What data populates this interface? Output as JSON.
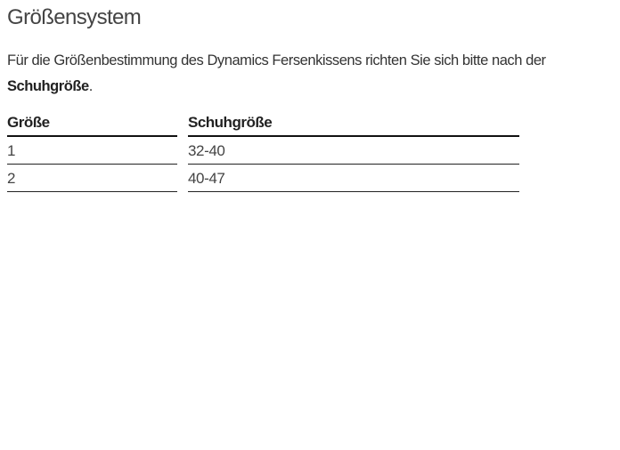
{
  "title": "Größensystem",
  "intro": {
    "text": "Für die Größenbestimmung des Dynamics Fersenkissens richten Sie sich bitte nach der",
    "bold": "Schuhgröße",
    "end": "."
  },
  "table": {
    "headers": [
      "Größe",
      "Schuhgröße"
    ],
    "rows": [
      [
        "1",
        "32-40"
      ],
      [
        "2",
        "40-47"
      ]
    ]
  }
}
